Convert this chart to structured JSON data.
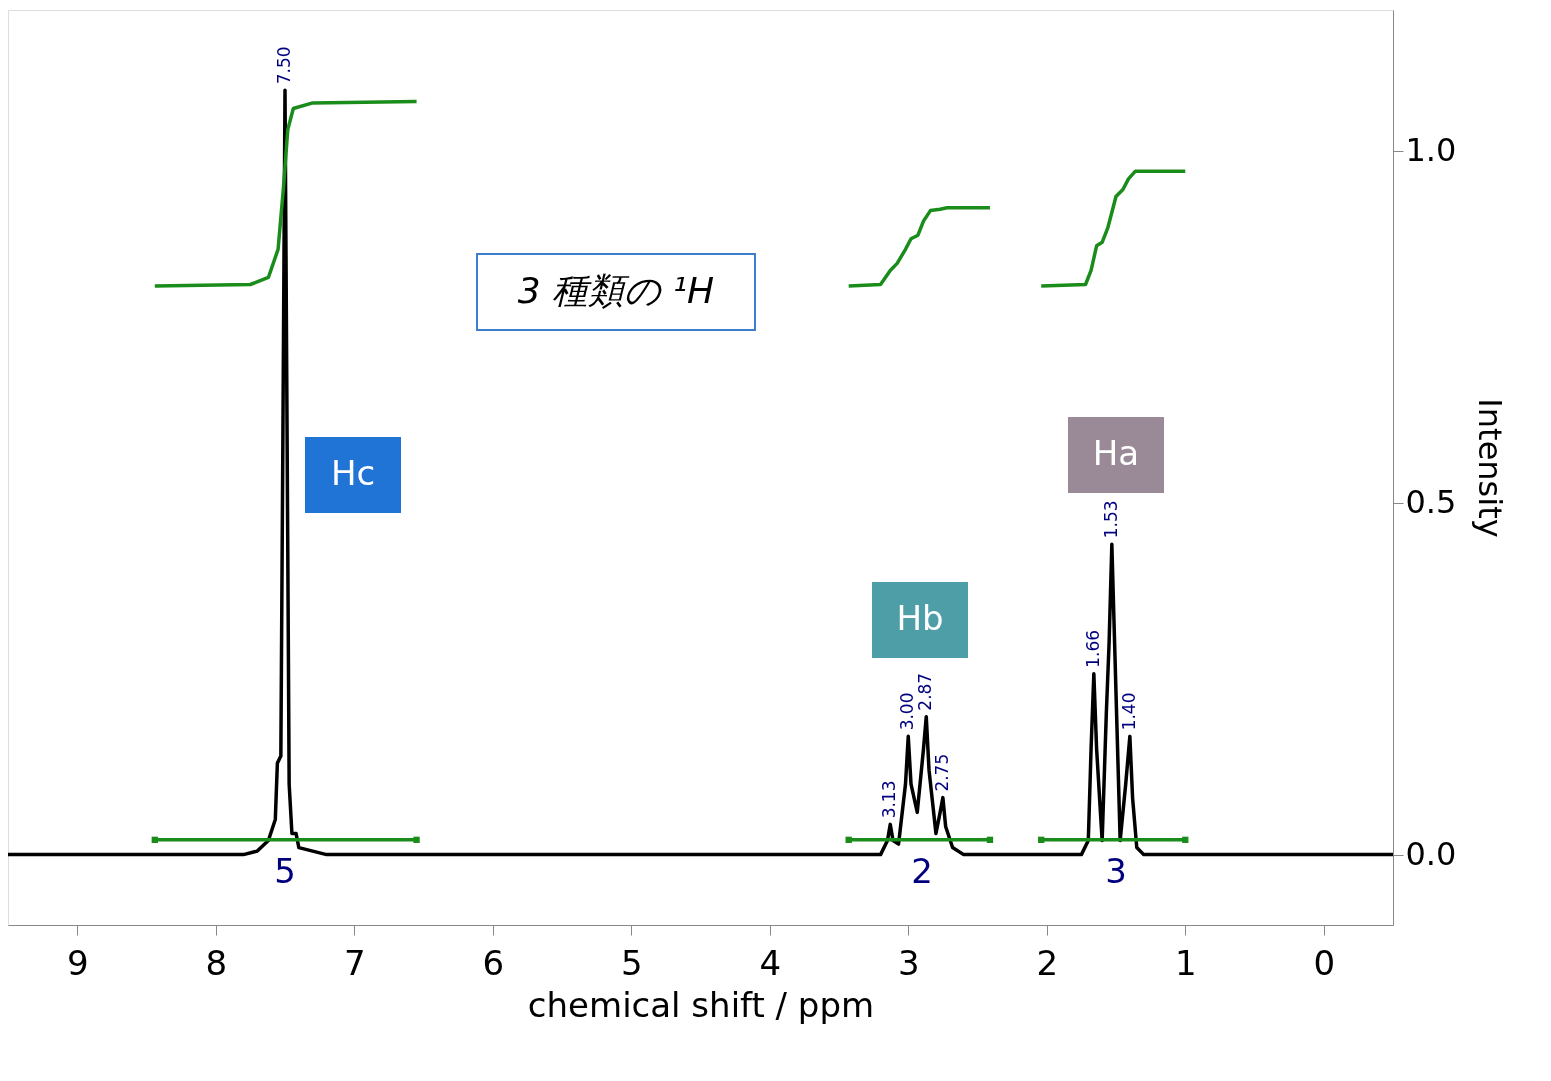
{
  "chart_data": {
    "type": "line",
    "xlabel": "chemical shift / ppm",
    "ylabel": "Intensity",
    "xlim": [
      9.5,
      -0.5
    ],
    "ylim": [
      -0.1,
      1.2
    ],
    "xticks": [
      9,
      8,
      7,
      6,
      5,
      4,
      3,
      2,
      1,
      0
    ],
    "yticks": [
      {
        "value": 0,
        "label": "0.0"
      },
      {
        "value": 0.5,
        "label": "0.5"
      },
      {
        "value": 1.0,
        "label": "1.0"
      }
    ],
    "grid": false,
    "line_style": "solid",
    "series": [
      {
        "color": "#000000",
        "x": [
          9.5,
          7.8,
          7.7,
          7.62,
          7.57,
          7.555,
          7.53,
          7.515,
          7.5,
          7.485,
          7.47,
          7.45,
          7.42,
          7.4,
          7.3,
          7.2,
          3.2,
          3.15,
          3.13,
          3.11,
          3.07,
          3.02,
          3.0,
          2.98,
          2.935,
          2.89,
          2.87,
          2.85,
          2.8,
          2.77,
          2.75,
          2.73,
          2.68,
          2.6,
          1.75,
          1.7,
          1.68,
          1.66,
          1.64,
          1.6,
          1.57,
          1.55,
          1.53,
          1.51,
          1.47,
          1.43,
          1.4,
          1.38,
          1.35,
          1.3,
          -0.5
        ],
        "values": [
          0,
          0,
          0.005,
          0.02,
          0.05,
          0.13,
          0.14,
          0.6,
          1.086,
          0.6,
          0.1,
          0.03,
          0.03,
          0.01,
          0.005,
          0,
          0,
          0.02,
          0.043,
          0.02,
          0.015,
          0.1,
          0.168,
          0.1,
          0.06,
          0.15,
          0.196,
          0.12,
          0.03,
          0.06,
          0.081,
          0.04,
          0.01,
          0,
          0,
          0.02,
          0.15,
          0.257,
          0.15,
          0.02,
          0.2,
          0.3,
          0.441,
          0.3,
          0.02,
          0.1,
          0.168,
          0.08,
          0.01,
          0,
          0
        ]
      },
      {
        "color": "#1a8c1a",
        "x": [
          8.44,
          7.75,
          7.62,
          7.55,
          7.51,
          7.48,
          7.44,
          7.3,
          6.55
        ],
        "values": [
          0.808,
          0.81,
          0.82,
          0.86,
          0.95,
          1.03,
          1.06,
          1.068,
          1.07
        ]
      },
      {
        "color": "#1a8c1a",
        "x": [
          3.43,
          3.2,
          3.13,
          3.08,
          3.02,
          2.98,
          2.93,
          2.89,
          2.84,
          2.77,
          2.72,
          2.41
        ],
        "values": [
          0.808,
          0.81,
          0.83,
          0.84,
          0.86,
          0.875,
          0.88,
          0.9,
          0.915,
          0.917,
          0.919,
          0.919
        ]
      },
      {
        "color": "#1a8c1a",
        "x": [
          2.04,
          1.72,
          1.68,
          1.64,
          1.6,
          1.56,
          1.5,
          1.45,
          1.41,
          1.36,
          1.0
        ],
        "values": [
          0.808,
          0.81,
          0.83,
          0.865,
          0.87,
          0.89,
          0.935,
          0.945,
          0.96,
          0.971,
          0.971
        ]
      },
      {
        "color": "#1a8c1a",
        "marker": "square",
        "x": [
          8.44,
          6.55
        ],
        "values": [
          0.021,
          0.021
        ]
      },
      {
        "color": "#1a8c1a",
        "marker": "square",
        "x": [
          3.43,
          2.41
        ],
        "values": [
          0.021,
          0.021
        ]
      },
      {
        "color": "#1a8c1a",
        "marker": "square",
        "x": [
          2.04,
          1.0
        ],
        "values": [
          0.021,
          0.021
        ]
      }
    ],
    "annotations": [
      {
        "text": "7.50",
        "x": 7.5,
        "y": 1.086
      },
      {
        "text": "3.13",
        "x": 3.13,
        "y": 0.043
      },
      {
        "text": "3.00",
        "x": 3.0,
        "y": 0.168
      },
      {
        "text": "2.87",
        "x": 2.87,
        "y": 0.196
      },
      {
        "text": "2.75",
        "x": 2.75,
        "y": 0.081
      },
      {
        "text": "1.66",
        "x": 1.66,
        "y": 0.257
      },
      {
        "text": "1.53",
        "x": 1.53,
        "y": 0.441
      },
      {
        "text": "1.40",
        "x": 1.4,
        "y": 0.168
      },
      {
        "text": "5",
        "x": 7.5,
        "y": 0.021
      },
      {
        "text": "2",
        "x": 2.9,
        "y": 0.021
      },
      {
        "text": "3",
        "x": 1.5,
        "y": 0.021
      },
      "Hc",
      "Hb",
      "Ha",
      "3 種類の ¹H"
    ]
  }
}
